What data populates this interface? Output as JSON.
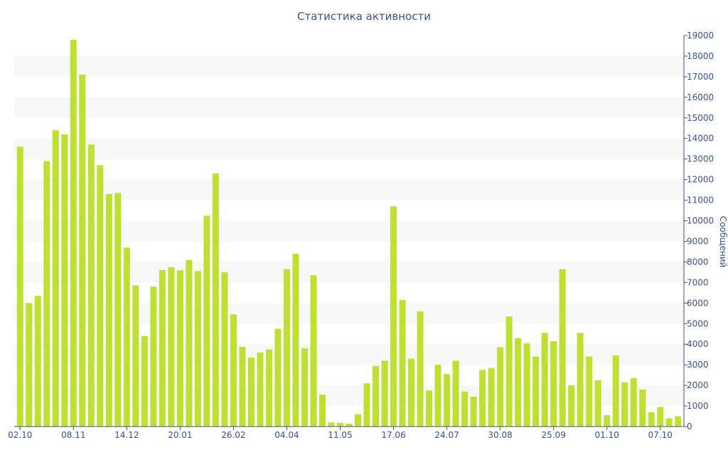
{
  "chart_data": {
    "type": "bar",
    "title": "Статистика активности",
    "ylabel": "Сообщений",
    "ylim": [
      0,
      19000
    ],
    "y_ticks": [
      0,
      1000,
      2000,
      3000,
      4000,
      5000,
      6000,
      7000,
      8000,
      9000,
      10000,
      11000,
      12000,
      13000,
      14000,
      15000,
      16000,
      17000,
      18000,
      19000
    ],
    "x_tick_labels": [
      {
        "label": "02.10",
        "index": 0
      },
      {
        "label": "08.11",
        "index": 6
      },
      {
        "label": "14.12",
        "index": 12
      },
      {
        "label": "20.01",
        "index": 18
      },
      {
        "label": "26.02",
        "index": 24
      },
      {
        "label": "04.04",
        "index": 30
      },
      {
        "label": "11.05",
        "index": 36
      },
      {
        "label": "17.06",
        "index": 42
      },
      {
        "label": "24.07",
        "index": 48
      },
      {
        "label": "30.08",
        "index": 54
      },
      {
        "label": "25.09",
        "index": 60
      },
      {
        "label": "01.10",
        "index": 66
      },
      {
        "label": "07.10",
        "index": 72
      }
    ],
    "values": [
      13600,
      6000,
      6350,
      12900,
      14400,
      14200,
      18800,
      17100,
      13700,
      12700,
      11300,
      11350,
      8700,
      6850,
      4400,
      6800,
      7600,
      7750,
      7600,
      8100,
      7550,
      10250,
      12300,
      7500,
      5450,
      3870,
      3350,
      3600,
      3750,
      4750,
      7650,
      8400,
      3800,
      7350,
      1550,
      200,
      180,
      140,
      600,
      2100,
      2950,
      3200,
      10700,
      6150,
      3300,
      5600,
      1750,
      3000,
      2550,
      3200,
      1700,
      1450,
      2750,
      2850,
      3850,
      5350,
      4300,
      4050,
      3400,
      4550,
      4150,
      7650,
      2000,
      4550,
      3400,
      2250,
      550,
      3450,
      2150,
      2350,
      1800,
      700,
      950,
      400,
      500
    ],
    "bar_color": "#bee031",
    "band_color": "#f7f7f7",
    "axis_color": "#3e4f8a",
    "grid": false,
    "y_axis_position": "right"
  }
}
